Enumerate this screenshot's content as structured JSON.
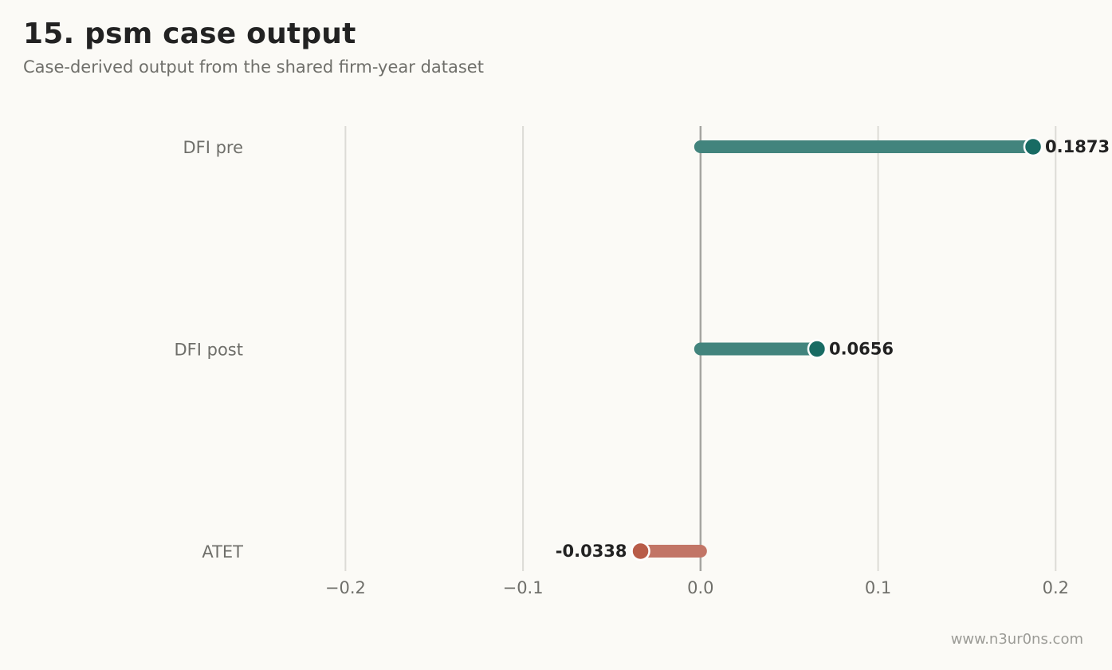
{
  "header": {
    "title": "15. psm case output",
    "subtitle": "Case-derived output from the shared firm-year dataset"
  },
  "footer": {
    "watermark": "www.n3ur0ns.com"
  },
  "colors": {
    "background": "#fbfaf6",
    "positive_bar": "#42847d",
    "positive_dot": "#186b63",
    "negative_bar": "#c27566",
    "negative_dot": "#b85c48",
    "gridline": "#dcdbd6",
    "zero_line": "#a5a5a1"
  },
  "chart_data": {
    "type": "bar",
    "orientation": "horizontal",
    "style": "lollipop",
    "categories": [
      "DFI pre",
      "DFI post",
      "ATET"
    ],
    "values": [
      0.1873,
      0.0656,
      -0.0338
    ],
    "value_labels": [
      "0.1873",
      "0.0656",
      "-0.0338"
    ],
    "xlim": [
      -0.25,
      0.225
    ],
    "xticks": [
      -0.2,
      -0.1,
      0.0,
      0.1,
      0.2
    ],
    "xtick_labels": [
      "−0.2",
      "−0.1",
      "0.0",
      "0.1",
      "0.2"
    ],
    "grid": true,
    "xlabel": "",
    "ylabel": ""
  }
}
